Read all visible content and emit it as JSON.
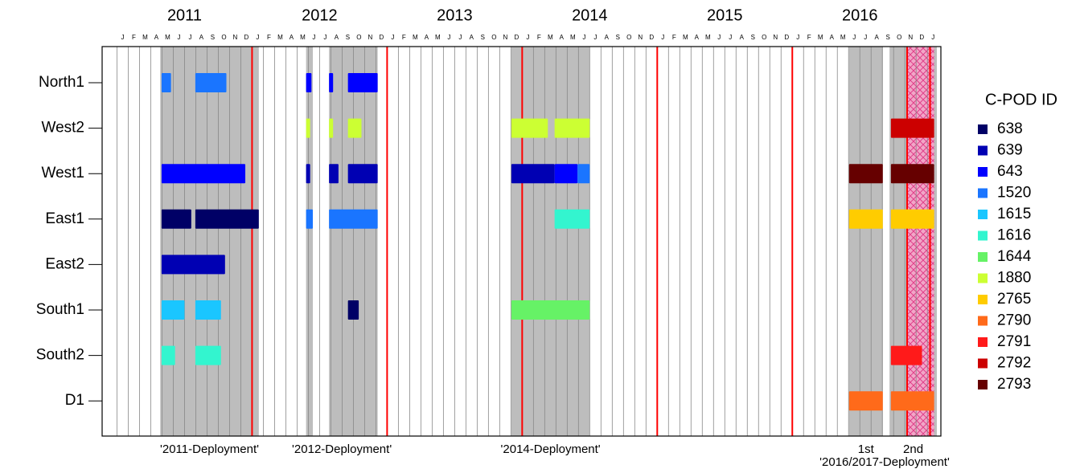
{
  "chart_data": {
    "type": "timeline",
    "legend_title": "C-POD ID",
    "categories": [
      "North1",
      "West2",
      "West1",
      "East1",
      "East2",
      "South1",
      "South2",
      "D1"
    ],
    "xlim": [
      2010.89,
      2017.1
    ],
    "years": [
      2011,
      2012,
      2013,
      2014,
      2015,
      2016
    ],
    "month_letters": [
      "J",
      "F",
      "M",
      "A",
      "M",
      "J",
      "J",
      "A",
      "S",
      "O",
      "N",
      "D"
    ],
    "last_month_tick": 2017,
    "red_lines": [
      2012,
      2013,
      2014,
      2015,
      2016,
      2016.85,
      2017.02
    ],
    "hatch_period": [
      2016.85,
      2017.05
    ],
    "deployments": [
      {
        "label": "'2011-Deployment'",
        "periods": [
          [
            2011.32,
            2012.05
          ]
        ]
      },
      {
        "label": "'2012-Deployment'",
        "periods": [
          [
            2012.4,
            2012.45
          ],
          [
            2012.57,
            2012.93
          ]
        ]
      },
      {
        "label": "'2014-Deployment'",
        "periods": [
          [
            2013.92,
            2014.5
          ]
        ]
      },
      {
        "label": "1st",
        "periods": [
          [
            2016.42,
            2016.67
          ]
        ]
      },
      {
        "label": "2nd",
        "periods": [
          [
            2016.72,
            2017.07
          ]
        ]
      }
    ],
    "deployment_group_label": "'2016/2017-Deployment'",
    "series": [
      {
        "name": "638",
        "color": "#000066",
        "bars": [
          {
            "station": "East1",
            "start": 2011.33,
            "end": 2011.55
          },
          {
            "station": "East1",
            "start": 2011.58,
            "end": 2012.05
          },
          {
            "station": "South1",
            "start": 2012.71,
            "end": 2012.79
          }
        ]
      },
      {
        "name": "639",
        "color": "#0000b3",
        "bars": [
          {
            "station": "West1",
            "start": 2012.4,
            "end": 2012.43
          },
          {
            "station": "West1",
            "start": 2012.57,
            "end": 2012.64
          },
          {
            "station": "West1",
            "start": 2012.71,
            "end": 2012.93
          },
          {
            "station": "West1",
            "start": 2013.92,
            "end": 2014.24
          },
          {
            "station": "East2",
            "start": 2011.33,
            "end": 2011.8
          }
        ]
      },
      {
        "name": "643",
        "color": "#0000ff",
        "bars": [
          {
            "station": "North1",
            "start": 2012.4,
            "end": 2012.44
          },
          {
            "station": "North1",
            "start": 2012.57,
            "end": 2012.6
          },
          {
            "station": "North1",
            "start": 2012.71,
            "end": 2012.93
          },
          {
            "station": "West1",
            "start": 2011.33,
            "end": 2011.95
          },
          {
            "station": "West1",
            "start": 2014.24,
            "end": 2014.41
          }
        ]
      },
      {
        "name": "1520",
        "color": "#1a75ff",
        "bars": [
          {
            "station": "North1",
            "start": 2011.33,
            "end": 2011.4
          },
          {
            "station": "North1",
            "start": 2011.58,
            "end": 2011.81
          },
          {
            "station": "West1",
            "start": 2014.41,
            "end": 2014.5
          },
          {
            "station": "East1",
            "start": 2012.4,
            "end": 2012.45
          },
          {
            "station": "East1",
            "start": 2012.57,
            "end": 2012.93
          }
        ]
      },
      {
        "name": "1615",
        "color": "#1ac6ff",
        "bars": [
          {
            "station": "South1",
            "start": 2011.33,
            "end": 2011.5
          },
          {
            "station": "South1",
            "start": 2011.58,
            "end": 2011.77
          }
        ]
      },
      {
        "name": "1616",
        "color": "#33f5cf",
        "bars": [
          {
            "station": "East1",
            "start": 2014.24,
            "end": 2014.5
          },
          {
            "station": "South2",
            "start": 2011.33,
            "end": 2011.43
          },
          {
            "station": "South2",
            "start": 2011.58,
            "end": 2011.77
          }
        ]
      },
      {
        "name": "1644",
        "color": "#66f266",
        "bars": [
          {
            "station": "South1",
            "start": 2013.92,
            "end": 2014.5
          }
        ]
      },
      {
        "name": "1880",
        "color": "#ccff33",
        "bars": [
          {
            "station": "West2",
            "start": 2012.4,
            "end": 2012.43
          },
          {
            "station": "West2",
            "start": 2012.57,
            "end": 2012.6
          },
          {
            "station": "West2",
            "start": 2012.71,
            "end": 2012.81
          },
          {
            "station": "West2",
            "start": 2013.92,
            "end": 2014.19
          },
          {
            "station": "West2",
            "start": 2014.24,
            "end": 2014.5
          }
        ]
      },
      {
        "name": "2765",
        "color": "#ffcc00",
        "bars": [
          {
            "station": "East1",
            "start": 2016.42,
            "end": 2016.67
          },
          {
            "station": "East1",
            "start": 2016.73,
            "end": 2017.05
          }
        ]
      },
      {
        "name": "2790",
        "color": "#ff6a1a",
        "bars": [
          {
            "station": "D1",
            "start": 2016.42,
            "end": 2016.67
          },
          {
            "station": "D1",
            "start": 2016.73,
            "end": 2017.05
          }
        ]
      },
      {
        "name": "2791",
        "color": "#ff1a1a",
        "bars": [
          {
            "station": "South2",
            "start": 2016.73,
            "end": 2016.96
          }
        ]
      },
      {
        "name": "2792",
        "color": "#cc0000",
        "bars": [
          {
            "station": "West2",
            "start": 2016.73,
            "end": 2017.05
          }
        ]
      },
      {
        "name": "2793",
        "color": "#660000",
        "bars": [
          {
            "station": "West1",
            "start": 2016.42,
            "end": 2016.67
          },
          {
            "station": "West1",
            "start": 2016.73,
            "end": 2017.05
          }
        ]
      }
    ]
  }
}
